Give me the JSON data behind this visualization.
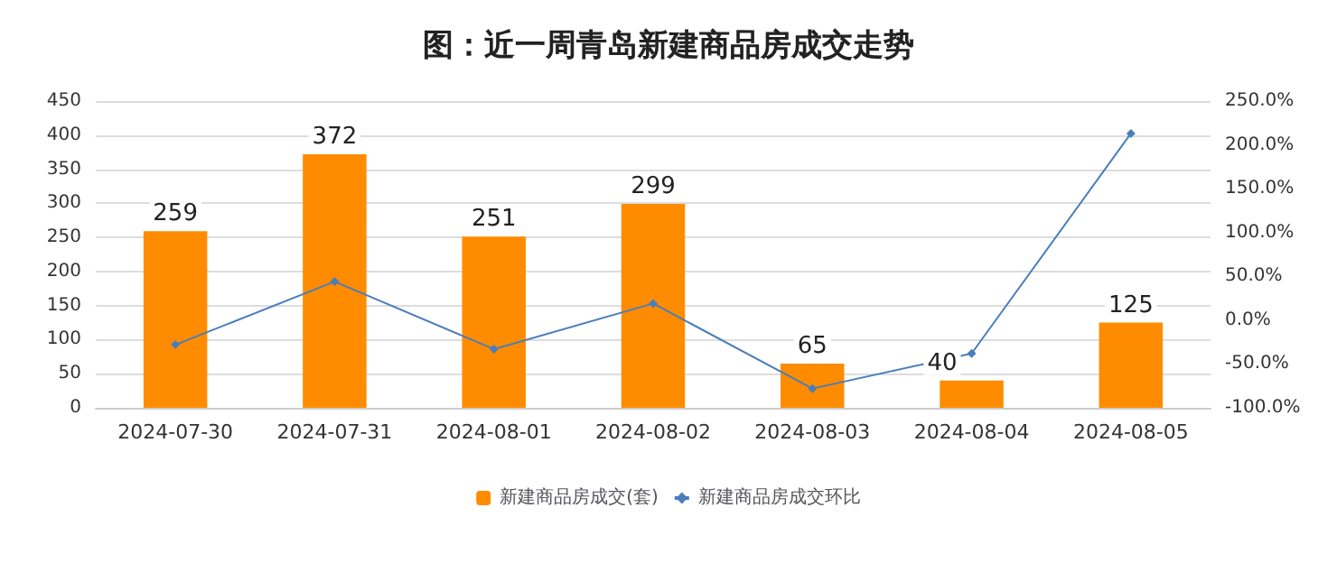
{
  "chart_data": {
    "type": "bar",
    "title": "图：近一周青岛新建商品房成交走势",
    "categories": [
      "2024-07-30",
      "2024-07-31",
      "2024-08-01",
      "2024-08-02",
      "2024-08-03",
      "2024-08-04",
      "2024-08-05"
    ],
    "series": [
      {
        "name": "新建商品房成交(套)",
        "color": "#ff8c00",
        "values": [
          259,
          372,
          251,
          299,
          65,
          40,
          125
        ],
        "data_labels": true
      },
      {
        "name": "新建商品房成交环比",
        "type": "line",
        "axis": "y2",
        "color": "#4a7ebb",
        "marker": "diamond",
        "values": [
          -28,
          44,
          -33,
          19,
          -78,
          -38,
          213
        ]
      }
    ],
    "ylim": [
      0,
      450
    ],
    "yticks": [
      0,
      50,
      100,
      150,
      200,
      250,
      300,
      350,
      400,
      450
    ],
    "y2lim": [
      -100,
      250
    ],
    "y2ticks": [
      {
        "value": -100,
        "label": "-100.0%"
      },
      {
        "value": -50,
        "label": "-50.0%"
      },
      {
        "value": 0,
        "label": "0.0%"
      },
      {
        "value": 50,
        "label": "50.0%"
      },
      {
        "value": 100,
        "label": "100.0%"
      },
      {
        "value": 150,
        "label": "150.0%"
      },
      {
        "value": 200,
        "label": "200.0%"
      },
      {
        "value": 250,
        "label": "250.0%"
      }
    ],
    "grid": "y",
    "legend": "bottom"
  }
}
